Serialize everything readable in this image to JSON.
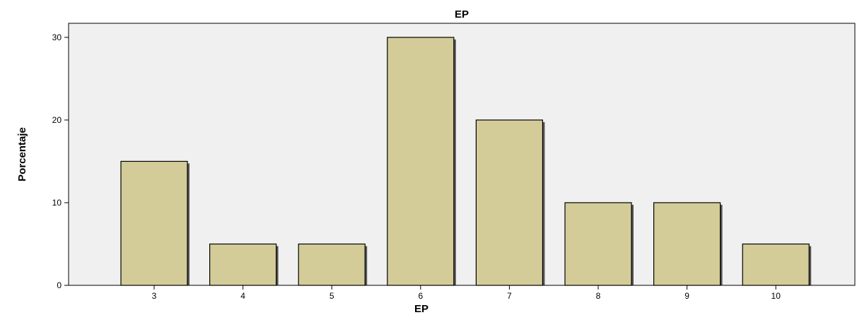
{
  "chart_data": {
    "type": "bar",
    "title": "EP",
    "xlabel": "EP",
    "ylabel": "Porcentaje",
    "categories": [
      "3",
      "4",
      "5",
      "6",
      "7",
      "8",
      "9",
      "10"
    ],
    "values": [
      15,
      5,
      5,
      30,
      20,
      10,
      10,
      5
    ],
    "ylim": [
      0,
      31.7
    ],
    "yticks": [
      0,
      10,
      20,
      30
    ],
    "grid": false,
    "colors": {
      "bar_fill": "#d4cc98",
      "bar_stroke": "#000000",
      "plot_background": "#f0f0f0",
      "bar_shadow": "#555555"
    }
  }
}
